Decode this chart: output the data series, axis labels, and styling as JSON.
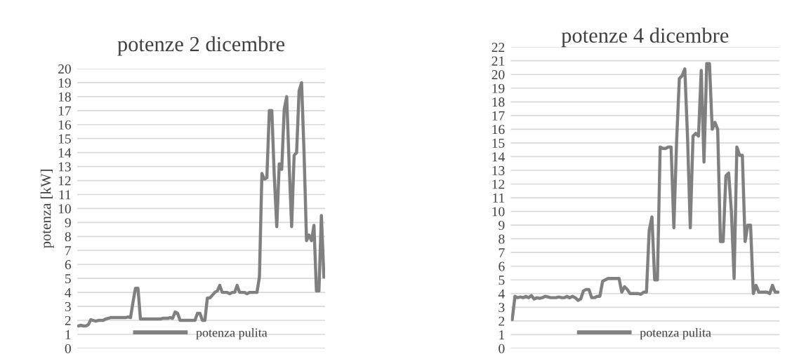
{
  "chart_data": [
    {
      "type": "line",
      "title": "potenze 2 dicembre",
      "ylabel": "potenza [kW]",
      "categories": [
        null,
        null,
        null,
        null,
        null,
        null,
        null,
        null,
        null,
        null,
        null,
        null,
        null,
        null,
        null,
        null,
        null,
        null,
        null,
        null,
        null,
        null,
        null,
        null,
        null,
        null,
        null,
        null,
        null,
        null,
        null,
        null,
        null,
        null,
        null,
        null,
        null,
        null,
        null,
        null,
        null,
        null,
        null,
        null,
        null,
        null,
        null,
        null,
        null,
        null,
        null,
        null,
        null,
        null,
        null,
        null,
        null,
        null,
        null,
        null,
        null,
        null,
        null,
        null,
        null,
        null,
        null,
        null,
        null,
        null,
        null,
        null,
        null,
        null,
        null,
        null,
        null,
        null,
        null,
        null,
        null,
        null,
        null,
        null,
        null,
        null,
        null,
        null,
        null,
        null,
        null,
        null,
        null,
        null,
        null,
        null,
        null,
        null,
        null,
        null
      ],
      "series": [
        {
          "name": "potenza pulita",
          "color": "#808080",
          "values": [
            1.6,
            1.65,
            1.6,
            1.6,
            1.7,
            2.05,
            2.0,
            1.95,
            2.0,
            2.0,
            2.0,
            2.1,
            2.15,
            2.2,
            2.2,
            2.2,
            2.2,
            2.2,
            2.2,
            2.2,
            2.25,
            2.2,
            3.3,
            4.3,
            4.3,
            2.1,
            2.1,
            2.1,
            2.1,
            2.1,
            2.1,
            2.1,
            2.1,
            2.1,
            2.15,
            2.15,
            2.15,
            2.2,
            2.15,
            2.6,
            2.5,
            2.0,
            2.0,
            2.0,
            2.0,
            2.0,
            2.0,
            2.0,
            2.5,
            2.5,
            2.0,
            2.0,
            3.6,
            3.6,
            3.8,
            4.0,
            4.1,
            4.5,
            4.0,
            4.0,
            4.0,
            3.9,
            4.0,
            4.0,
            4.5,
            4.0,
            4.0,
            4.0,
            3.9,
            4.0,
            4.0,
            4.0,
            4.0,
            5.1,
            12.5,
            12.1,
            12.2,
            17.0,
            17.0,
            12.3,
            8.7,
            13.2,
            12.8,
            17.1,
            18.0,
            13.1,
            8.7,
            13.8,
            14.0,
            18.4,
            19.0,
            14.0,
            7.7,
            8.1,
            7.7,
            8.8,
            4.1,
            4.1,
            9.5,
            5.1
          ]
        }
      ],
      "ylim": [
        0,
        20
      ],
      "yticks": [
        0,
        1,
        2,
        3,
        4,
        5,
        6,
        7,
        8,
        9,
        10,
        11,
        12,
        13,
        14,
        15,
        16,
        17,
        18,
        19,
        20
      ],
      "grid": "y",
      "legend": "bottom",
      "line_style": "solid",
      "marker": "none",
      "tick_labels": "y"
    },
    {
      "type": "line",
      "title": "potenze 4 dicembre",
      "categories": [
        null,
        null,
        null,
        null,
        null,
        null,
        null,
        null,
        null,
        null,
        null,
        null,
        null,
        null,
        null,
        null,
        null,
        null,
        null,
        null,
        null,
        null,
        null,
        null,
        null,
        null,
        null,
        null,
        null,
        null,
        null,
        null,
        null,
        null,
        null,
        null,
        null,
        null,
        null,
        null,
        null,
        null,
        null,
        null,
        null,
        null,
        null,
        null,
        null,
        null,
        null,
        null,
        null,
        null,
        null,
        null,
        null,
        null,
        null,
        null,
        null,
        null,
        null,
        null,
        null,
        null,
        null,
        null,
        null,
        null,
        null,
        null,
        null,
        null,
        null,
        null,
        null,
        null,
        null,
        null,
        null,
        null,
        null,
        null,
        null,
        null,
        null,
        null,
        null,
        null,
        null,
        null,
        null,
        null,
        null,
        null,
        null,
        null
      ],
      "series": [
        {
          "name": "potenza pulita",
          "color": "#808080",
          "values": [
            2.1,
            3.8,
            3.7,
            3.75,
            3.7,
            3.8,
            3.7,
            3.85,
            3.6,
            3.7,
            3.65,
            3.7,
            3.8,
            3.75,
            3.7,
            3.7,
            3.7,
            3.75,
            3.7,
            3.7,
            3.8,
            3.7,
            3.8,
            3.7,
            3.5,
            3.6,
            4.2,
            4.3,
            4.3,
            3.7,
            3.7,
            3.8,
            3.8,
            4.9,
            5.0,
            5.1,
            5.1,
            5.1,
            5.1,
            5.1,
            4.1,
            4.5,
            4.3,
            4.0,
            4.0,
            4.0,
            4.0,
            3.95,
            4.1,
            4.1,
            8.6,
            9.6,
            5.0,
            5.0,
            14.7,
            14.6,
            14.6,
            14.7,
            14.7,
            8.8,
            15.1,
            19.7,
            19.9,
            20.4,
            15.4,
            8.8,
            15.5,
            15.7,
            15.5,
            20.3,
            13.6,
            20.8,
            20.8,
            16.0,
            16.5,
            16.0,
            7.8,
            7.8,
            12.6,
            12.8,
            10.0,
            5.1,
            14.7,
            14.1,
            14.1,
            7.8,
            9.0,
            9.0,
            4.0,
            4.6,
            4.1,
            4.1,
            4.1,
            4.1,
            4.0,
            4.6,
            4.1,
            4.1
          ]
        }
      ],
      "ylim": [
        0,
        22
      ],
      "yticks": [
        0,
        1,
        2,
        3,
        4,
        5,
        6,
        7,
        8,
        9,
        10,
        11,
        12,
        13,
        14,
        15,
        16,
        17,
        18,
        19,
        20,
        21,
        22
      ],
      "grid": "y",
      "legend": "bottom",
      "line_style": "solid",
      "marker": "none",
      "tick_labels": "y"
    }
  ]
}
